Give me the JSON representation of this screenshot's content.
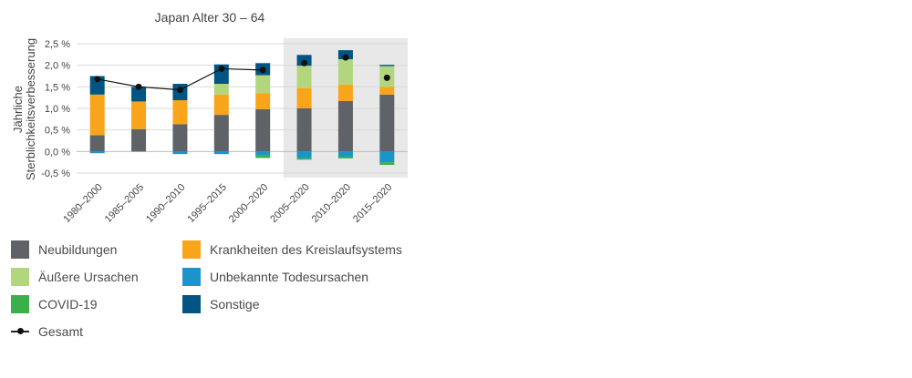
{
  "chart_data": {
    "type": "bar",
    "title": "Japan Alter 30 – 64",
    "ylabel": "Jährliche Sterblichkeitsverbesserung",
    "ylim": [
      -0.5,
      2.5
    ],
    "yticks": [
      "2,5 %",
      "2,0 %",
      "1,5 %",
      "1,0 %",
      "0,5 %",
      "0,0 %",
      "-0,5 %"
    ],
    "ytick_values": [
      2.5,
      2.0,
      1.5,
      1.0,
      0.5,
      0.0,
      -0.5
    ],
    "categories": [
      "1980–2000",
      "1985–2005",
      "1990–2010",
      "1995–2015",
      "2000–2020",
      "2005–2020",
      "2010–2020",
      "2015–2020"
    ],
    "shaded_categories": [
      "2005–2020",
      "2010–2020",
      "2015–2020"
    ],
    "grid": "horizontal",
    "series": [
      {
        "name": "Neubildungen",
        "color": "#5f6367",
        "values": [
          0.38,
          0.52,
          0.63,
          0.85,
          0.98,
          1.0,
          1.17,
          1.32
        ]
      },
      {
        "name": "Krankheiten des Kreislaufsystems",
        "color": "#f9a51b",
        "values": [
          0.94,
          0.64,
          0.56,
          0.47,
          0.37,
          0.47,
          0.38,
          0.18
        ]
      },
      {
        "name": "Äußere Ursachen",
        "color": "#b2d67d",
        "values": [
          0.0,
          0.0,
          0.0,
          0.25,
          0.42,
          0.52,
          0.59,
          0.48
        ]
      },
      {
        "name": "Unbekannte Todesursachen",
        "color": "#1b95c9",
        "values": [
          -0.04,
          0.0,
          -0.06,
          -0.06,
          -0.09,
          -0.15,
          -0.12,
          -0.25
        ]
      },
      {
        "name": "COVID-19",
        "color": "#3bb04a",
        "values": [
          0.0,
          0.0,
          0.0,
          0.0,
          -0.06,
          -0.04,
          -0.04,
          -0.06
        ]
      },
      {
        "name": "Sonstige",
        "color": "#005582",
        "values": [
          0.43,
          0.34,
          0.38,
          0.45,
          0.28,
          0.25,
          0.21,
          0.03
        ]
      }
    ],
    "total": {
      "name": "Gesamt",
      "color": "#111111",
      "values": [
        1.68,
        1.5,
        1.43,
        1.92,
        1.89,
        2.05,
        2.18,
        1.71
      ]
    }
  },
  "legend": {
    "items": [
      {
        "label": "Neubildungen",
        "color": "#5f6367",
        "kind": "box"
      },
      {
        "label": "Krankheiten des Kreislaufsystems",
        "color": "#f9a51b",
        "kind": "box"
      },
      {
        "label": "Äußere Ursachen",
        "color": "#b2d67d",
        "kind": "box"
      },
      {
        "label": "Unbekannte Todesursachen",
        "color": "#1b95c9",
        "kind": "box"
      },
      {
        "label": "COVID-19",
        "color": "#3bb04a",
        "kind": "box"
      },
      {
        "label": "Sonstige",
        "color": "#005582",
        "kind": "box"
      },
      {
        "label": "Gesamt",
        "color": "#111111",
        "kind": "line"
      }
    ]
  }
}
